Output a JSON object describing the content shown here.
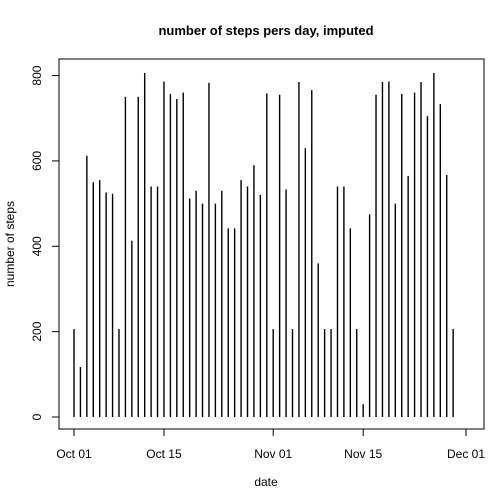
{
  "chart_data": {
    "type": "bar",
    "subtype": "histogram-spikes",
    "title": "number of steps pers day, imputed",
    "xlabel": "date",
    "ylabel": "number of steps",
    "xlim": [
      "2012-10-01",
      "2012-11-30"
    ],
    "ylim": [
      0,
      806
    ],
    "x_ticks": [
      {
        "date": "2012-10-01",
        "label": "Oct 01"
      },
      {
        "date": "2012-10-15",
        "label": "Oct 15"
      },
      {
        "date": "2012-11-01",
        "label": "Nov 01"
      },
      {
        "date": "2012-11-15",
        "label": "Nov 15"
      },
      {
        "date": "2012-12-01",
        "label": "Dec 01"
      }
    ],
    "y_ticks": [
      0,
      200,
      400,
      600,
      800
    ],
    "grid": false,
    "series": [
      {
        "x": [
          "2012-10-01",
          "2012-10-02",
          "2012-10-03",
          "2012-10-04",
          "2012-10-05",
          "2012-10-06",
          "2012-10-07",
          "2012-10-08",
          "2012-10-09",
          "2012-10-10",
          "2012-10-11",
          "2012-10-12",
          "2012-10-13",
          "2012-10-14",
          "2012-10-15",
          "2012-10-16",
          "2012-10-17",
          "2012-10-18",
          "2012-10-19",
          "2012-10-20",
          "2012-10-21",
          "2012-10-22",
          "2012-10-23",
          "2012-10-24",
          "2012-10-25",
          "2012-10-26",
          "2012-10-27",
          "2012-10-28",
          "2012-10-29",
          "2012-10-30",
          "2012-10-31",
          "2012-11-01",
          "2012-11-02",
          "2012-11-03",
          "2012-11-04",
          "2012-11-05",
          "2012-11-06",
          "2012-11-07",
          "2012-11-08",
          "2012-11-09",
          "2012-11-10",
          "2012-11-11",
          "2012-11-12",
          "2012-11-13",
          "2012-11-14",
          "2012-11-15",
          "2012-11-16",
          "2012-11-17",
          "2012-11-18",
          "2012-11-19",
          "2012-11-20",
          "2012-11-21",
          "2012-11-22",
          "2012-11-23",
          "2012-11-24",
          "2012-11-25",
          "2012-11-26",
          "2012-11-27",
          "2012-11-28",
          "2012-11-29",
          "2012-11-30"
        ],
        "values": [
          206,
          117,
          612,
          550,
          555,
          526,
          523,
          206,
          750,
          413,
          750,
          806,
          540,
          540,
          786,
          757,
          745,
          760,
          512,
          530,
          500,
          783,
          500,
          530,
          442,
          442,
          555,
          540,
          590,
          520,
          758,
          206,
          755,
          533,
          206,
          785,
          630,
          766,
          360,
          206,
          206,
          540,
          540,
          442,
          206,
          30,
          475,
          755,
          785,
          786,
          500,
          757,
          565,
          760,
          785,
          705,
          806,
          733,
          567,
          206,
          0
        ]
      }
    ]
  }
}
